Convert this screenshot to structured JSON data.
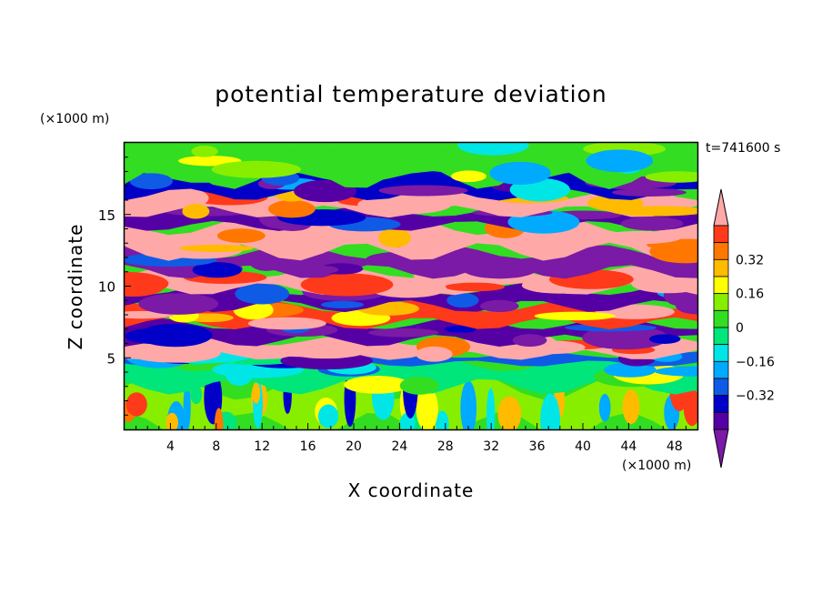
{
  "chart_data": {
    "type": "heatmap",
    "title": "potential temperature deviation",
    "xlabel": "X coordinate",
    "ylabel": "Z coordinate",
    "x_unit": "(×1000 m)",
    "z_unit": "(×1000 m)",
    "time_label": "t=741600 s",
    "xlim": [
      0,
      50
    ],
    "ylim": [
      0,
      20
    ],
    "x_ticks": [
      4,
      8,
      12,
      16,
      20,
      24,
      28,
      32,
      36,
      40,
      44,
      48
    ],
    "y_ticks": [
      5,
      10,
      15
    ],
    "colorbar": {
      "levels": [
        -0.48,
        -0.4,
        -0.32,
        -0.24,
        -0.16,
        -0.08,
        0,
        0.08,
        0.16,
        0.24,
        0.32,
        0.4
      ],
      "labeled_levels": [
        0.32,
        0.16,
        0,
        -0.16,
        -0.32
      ],
      "colors": [
        "#7a1aa6",
        "#5500a5",
        "#0000c8",
        "#0f5be6",
        "#00aaff",
        "#00e6e6",
        "#00e67a",
        "#33dd22",
        "#88ee00",
        "#ffff00",
        "#ffbb00",
        "#ff7700",
        "#ff3a1a",
        "#ffa8a8"
      ]
    },
    "bands": [
      {
        "z": [
          0.3,
          3.0
        ],
        "level": 8,
        "kind": "convective"
      },
      {
        "z": [
          3.0,
          4.6
        ],
        "level": 6
      },
      {
        "z": [
          4.6,
          5.2
        ],
        "level": 3
      },
      {
        "z": [
          5.2,
          6.2
        ],
        "level": 13
      },
      {
        "z": [
          6.2,
          7.4
        ],
        "level": 1
      },
      {
        "z": [
          7.4,
          8.6
        ],
        "level": 12
      },
      {
        "z": [
          8.6,
          9.8
        ],
        "level": 1
      },
      {
        "z": [
          9.8,
          11.0
        ],
        "level": 13
      },
      {
        "z": [
          11.0,
          12.4
        ],
        "level": 0
      },
      {
        "z": [
          12.4,
          14.2
        ],
        "level": 13
      },
      {
        "z": [
          14.2,
          15.2
        ],
        "level": 1
      },
      {
        "z": [
          15.2,
          16.4
        ],
        "level": 13
      },
      {
        "z": [
          16.4,
          17.6
        ],
        "level": 2
      },
      {
        "z": [
          17.6,
          20.0
        ],
        "level": 7
      }
    ]
  }
}
